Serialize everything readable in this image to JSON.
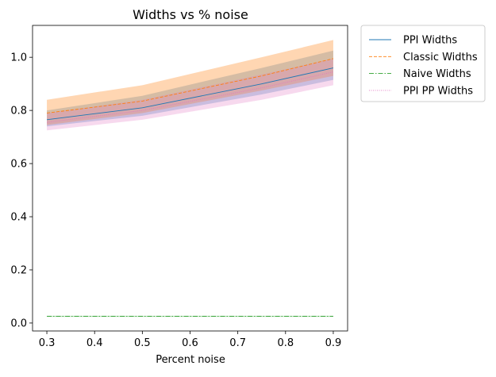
{
  "chart_data": {
    "type": "line",
    "title": "Widths vs % noise",
    "xlabel": "Percent noise",
    "ylabel": "",
    "xlim": [
      0.27,
      0.93
    ],
    "ylim": [
      -0.03,
      1.12
    ],
    "xticks": [
      0.3,
      0.4,
      0.5,
      0.6,
      0.7,
      0.8,
      0.9
    ],
    "xtick_labels": [
      "0.3",
      "0.4",
      "0.5",
      "0.6",
      "0.7",
      "0.8",
      "0.9"
    ],
    "yticks": [
      0.0,
      0.2,
      0.4,
      0.6,
      0.8,
      1.0
    ],
    "ytick_labels": [
      "0.0",
      "0.2",
      "0.4",
      "0.6",
      "0.8",
      "1.0"
    ],
    "grid": false,
    "legend_position": "outside-upper-right",
    "x": [
      0.3,
      0.5,
      0.75,
      0.9
    ],
    "series": [
      {
        "name": "PPI Widths",
        "color": "#1f77b4",
        "linestyle": "solid",
        "values": [
          0.765,
          0.81,
          0.9,
          0.96
        ],
        "band_lower": [
          0.74,
          0.78,
          0.86,
          0.915
        ],
        "band_upper": [
          0.8,
          0.855,
          0.96,
          1.025
        ]
      },
      {
        "name": "Classic Widths",
        "color": "#ff7f0e",
        "linestyle": "dashed",
        "values": [
          0.79,
          0.835,
          0.93,
          0.995
        ],
        "band_lower": [
          0.745,
          0.79,
          0.875,
          0.93
        ],
        "band_upper": [
          0.84,
          0.895,
          1.0,
          1.065
        ]
      },
      {
        "name": "Naive Widths",
        "color": "#2ca02c",
        "linestyle": "dashdot",
        "values": [
          0.025,
          0.025,
          0.025,
          0.025
        ],
        "band_lower": [
          0.023,
          0.023,
          0.023,
          0.023
        ],
        "band_upper": [
          0.027,
          0.027,
          0.027,
          0.027
        ]
      },
      {
        "name": "PPI PP Widths",
        "color": "#e377c2",
        "linestyle": "dotted",
        "values": [
          0.755,
          0.8,
          0.885,
          0.945
        ],
        "band_lower": [
          0.725,
          0.765,
          0.84,
          0.895
        ],
        "band_upper": [
          0.79,
          0.84,
          0.935,
          0.995
        ]
      }
    ]
  }
}
